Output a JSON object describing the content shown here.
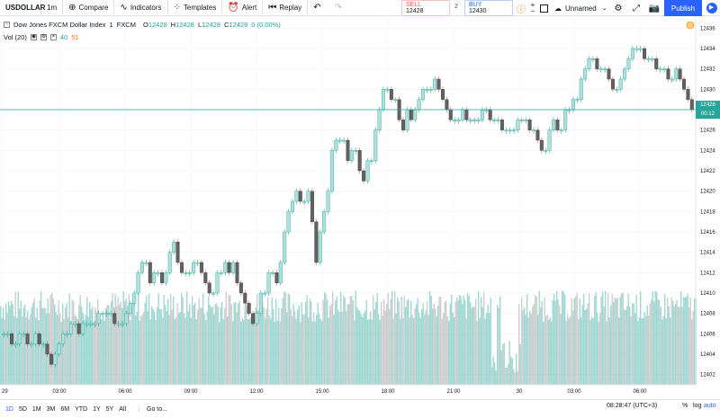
{
  "toolbar": {
    "symbol": "USDOLLAR",
    "interval": "1m",
    "compare_label": "Compare",
    "indicators_label": "Indicators",
    "templates_label": "Templates",
    "alert_label": "Alert",
    "replay_label": "Replay",
    "sell_label": "SELL",
    "sell_price": "12428",
    "spread": "2",
    "buy_label": "BUY",
    "buy_price": "12430",
    "layout_name": "Unnamed",
    "publish_label": "Publish"
  },
  "legend": {
    "title": "Dow Jones FXCM Dollar Index",
    "interval": "1",
    "source": "FXCM",
    "open_label": "O",
    "open": "12428",
    "high_label": "H",
    "high": "12428",
    "low_label": "L",
    "low": "12428",
    "close_label": "C",
    "close": "12428",
    "change": "0 (0.00%)",
    "vol_label": "Vol (20)",
    "vol_value1": "40",
    "vol_value2": "51"
  },
  "price_axis": {
    "labels": [
      "12436",
      "12434",
      "12432",
      "12430",
      "12428",
      "12426",
      "12424",
      "12422",
      "12420",
      "12418",
      "12416",
      "12414",
      "12412",
      "12410",
      "12408",
      "12406",
      "12404",
      "12402"
    ],
    "current_price": "12428",
    "current_countdown": "00:12"
  },
  "time_axis": {
    "labels": [
      "29",
      "03:00",
      "06:00",
      "09:00",
      "12:00",
      "15:00",
      "18:00",
      "21:00",
      "30",
      "03:00",
      "06:00"
    ]
  },
  "bottom": {
    "ranges": [
      "1D",
      "5D",
      "1M",
      "3M",
      "6M",
      "YTD",
      "1Y",
      "5Y",
      "All"
    ],
    "active_range": "1D",
    "goto_label": "Go to...",
    "clock": "08:28:47 (UTC+3)",
    "percent_label": "%",
    "log_label": "log",
    "auto_label": "auto"
  },
  "colors": {
    "up": "#26a69a",
    "down": "#ef5350",
    "candle_up": "#b2dfdb",
    "candle_down": "#616161",
    "volume": "#80cbc4",
    "accent": "#2962ff"
  },
  "chart_data": {
    "type": "candlestick",
    "ylim": [
      12401,
      12437
    ],
    "price_path": [
      12406,
      12406,
      12405,
      12405,
      12406,
      12406,
      12405,
      12405,
      12406,
      12405,
      12405,
      12404,
      12403,
      12404,
      12405,
      12406,
      12406,
      12407,
      12407,
      12406,
      12407,
      12407,
      12407,
      12407,
      12408,
      12408,
      12408,
      12408,
      12407,
      12407,
      12407,
      12408,
      12409,
      12410,
      12412,
      12413,
      12413,
      12411,
      12412,
      12412,
      12411,
      12412,
      12414,
      12415,
      12413,
      12412,
      12412,
      12412,
      12413,
      12413,
      12412,
      12411,
      12410,
      12410,
      12412,
      12412,
      12413,
      12412,
      12413,
      12411,
      12410,
      12409,
      12408,
      12407,
      12408,
      12410,
      12410,
      12412,
      12412,
      12411,
      12413,
      12416,
      12418,
      12419,
      12420,
      12419,
      12419,
      12420,
      12417,
      12413,
      12416,
      12418,
      12420,
      12424,
      12425,
      12425,
      12425,
      12423,
      12424,
      12424,
      12422,
      12421,
      12423,
      12423,
      12426,
      12428,
      12430,
      12430,
      12429,
      12429,
      12427,
      12426,
      12428,
      12427,
      12428,
      12429,
      12430,
      12430,
      12430,
      12431,
      12430,
      12429,
      12428,
      12427,
      12427,
      12427,
      12428,
      12427,
      12427,
      12427,
      12427,
      12428,
      12428,
      12427,
      12427,
      12427,
      12426,
      12426,
      12426,
      12426,
      12427,
      12427,
      12427,
      12426,
      12426,
      12425,
      12424,
      12424,
      12426,
      12427,
      12426,
      12426,
      12428,
      12428,
      12429,
      12429,
      12431,
      12432,
      12433,
      12433,
      12432,
      12432,
      12432,
      12431,
      12430,
      12430,
      12431,
      12432,
      12433,
      12434,
      12434,
      12434,
      12433,
      12433,
      12433,
      12432,
      12432,
      12432,
      12431,
      12431,
      12432,
      12431,
      12430,
      12429,
      12428
    ]
  }
}
